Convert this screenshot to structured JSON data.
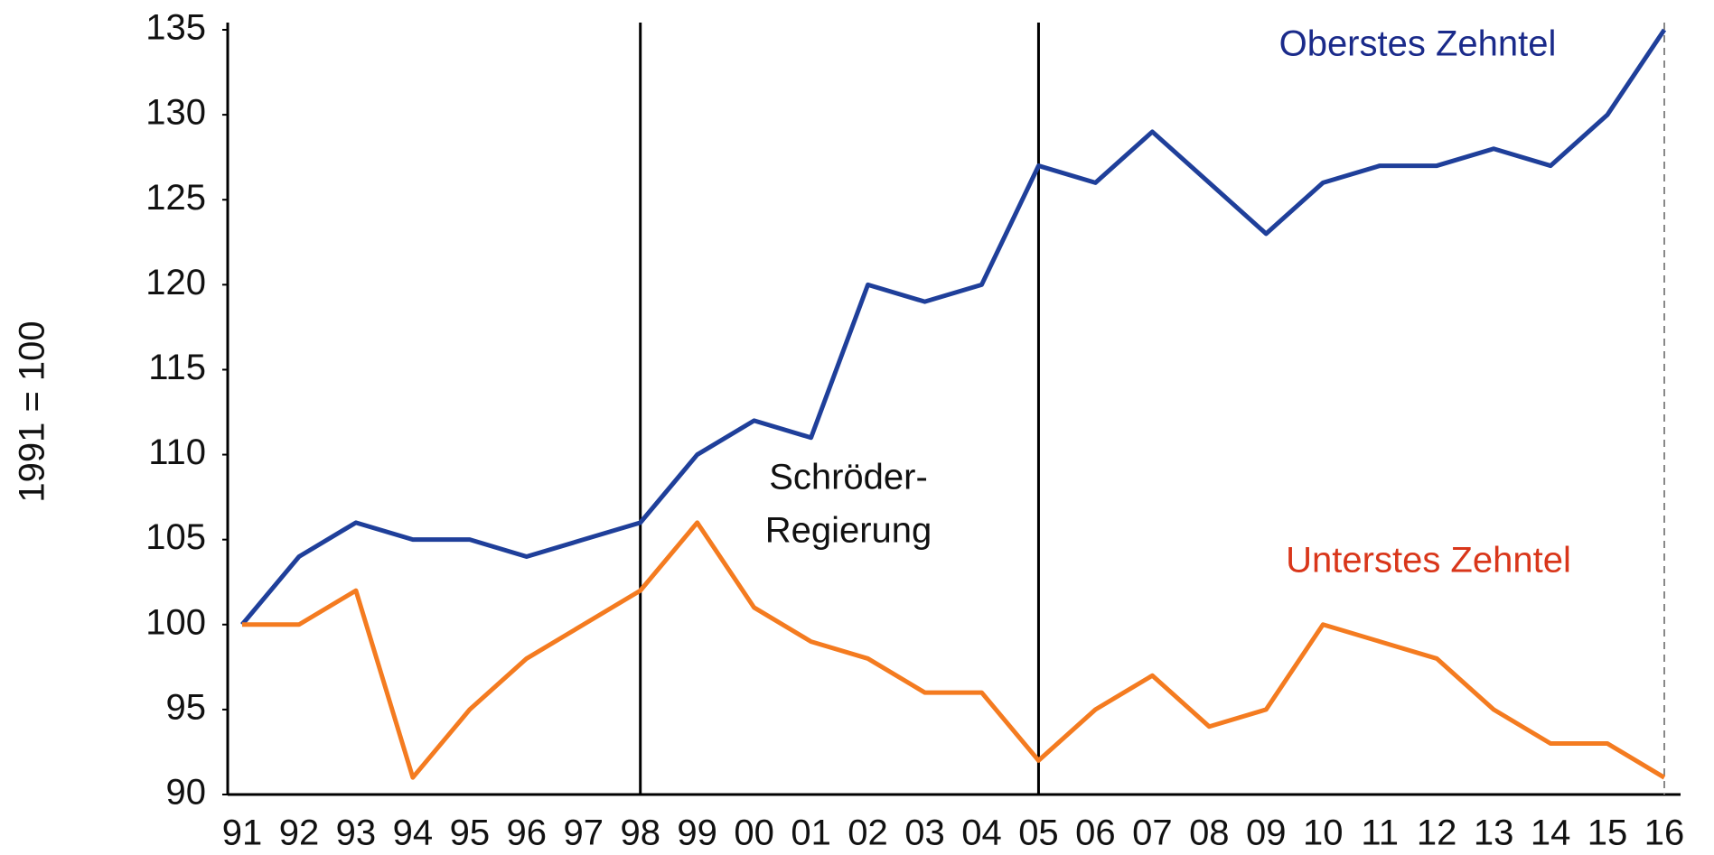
{
  "chart_data": {
    "type": "line",
    "ylabel": "1991 = 100",
    "categories": [
      "91",
      "92",
      "93",
      "94",
      "95",
      "96",
      "97",
      "98",
      "99",
      "00",
      "01",
      "02",
      "03",
      "04",
      "05",
      "06",
      "07",
      "08",
      "09",
      "10",
      "11",
      "12",
      "13",
      "14",
      "15",
      "16"
    ],
    "series": [
      {
        "name": "Oberstes Zehntel",
        "color": "#1f3f9a",
        "label_color": "#1a2a8a",
        "values": [
          100,
          104,
          106,
          105,
          105,
          104,
          105,
          106,
          110,
          112,
          111,
          120,
          119,
          120,
          127,
          126,
          129,
          126,
          123,
          126,
          127,
          127,
          128,
          127,
          130,
          135
        ]
      },
      {
        "name": "Unterstes Zehntel",
        "color": "#f47b20",
        "label_color": "#d9361a",
        "values": [
          100,
          100,
          102,
          91,
          95,
          98,
          100,
          102,
          106,
          101,
          99,
          98,
          96,
          96,
          92,
          95,
          97,
          94,
          95,
          100,
          99,
          98,
          95,
          93,
          93,
          91
        ]
      }
    ],
    "ylim": [
      90,
      135
    ],
    "yticks": [
      90,
      95,
      100,
      105,
      110,
      115,
      120,
      125,
      130,
      135
    ],
    "vertical_lines": [
      {
        "at": "98",
        "style": "solid"
      },
      {
        "at": "05",
        "style": "solid"
      },
      {
        "at": "16",
        "style": "dashed"
      }
    ],
    "annotations": [
      "Schröder-",
      "Regierung"
    ]
  }
}
